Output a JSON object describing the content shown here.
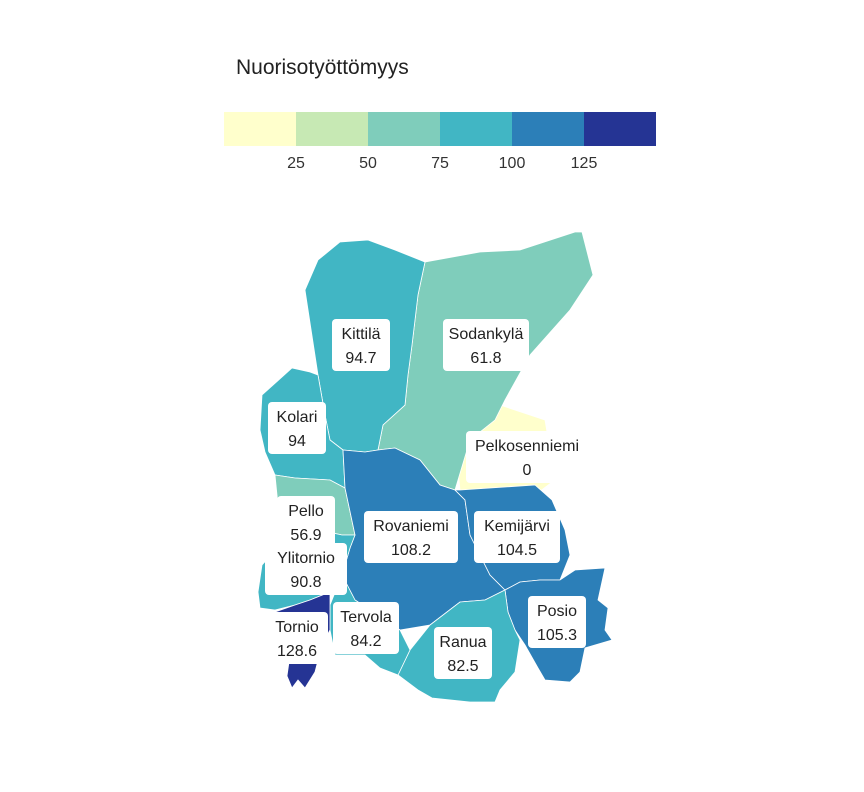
{
  "legend": {
    "title": "Nuorisotyöttömyys",
    "colors": [
      "#ffffcc",
      "#c7e9b4",
      "#7fcdbb",
      "#41b6c4",
      "#2c7fb8",
      "#253494"
    ],
    "ticks": [
      "25",
      "50",
      "75",
      "100",
      "125"
    ]
  },
  "municipalities": [
    {
      "id": "kittila",
      "name": "Kittilä",
      "value": "94.7",
      "color": "#41b6c4"
    },
    {
      "id": "sodankyla",
      "name": "Sodankylä",
      "value": "61.8",
      "color": "#7fcdbb"
    },
    {
      "id": "kolari",
      "name": "Kolari",
      "value": "94",
      "color": "#41b6c4"
    },
    {
      "id": "pelkosenniemi",
      "name": "Pelkosenniemi",
      "value": "0",
      "color": "#ffffcc"
    },
    {
      "id": "pello",
      "name": "Pello",
      "value": "56.9",
      "color": "#7fcdbb"
    },
    {
      "id": "rovaniemi",
      "name": "Rovaniemi",
      "value": "108.2",
      "color": "#2c7fb8"
    },
    {
      "id": "kemijarvi",
      "name": "Kemijärvi",
      "value": "104.5",
      "color": "#2c7fb8"
    },
    {
      "id": "ylitornio",
      "name": "Ylitornio",
      "value": "90.8",
      "color": "#41b6c4"
    },
    {
      "id": "tornio",
      "name": "Tornio",
      "value": "128.6",
      "color": "#253494"
    },
    {
      "id": "tervola",
      "name": "Tervola",
      "value": "84.2",
      "color": "#41b6c4"
    },
    {
      "id": "posio",
      "name": "Posio",
      "value": "105.3",
      "color": "#2c7fb8"
    },
    {
      "id": "ranua",
      "name": "Ranua",
      "value": "82.5",
      "color": "#41b6c4"
    }
  ]
}
